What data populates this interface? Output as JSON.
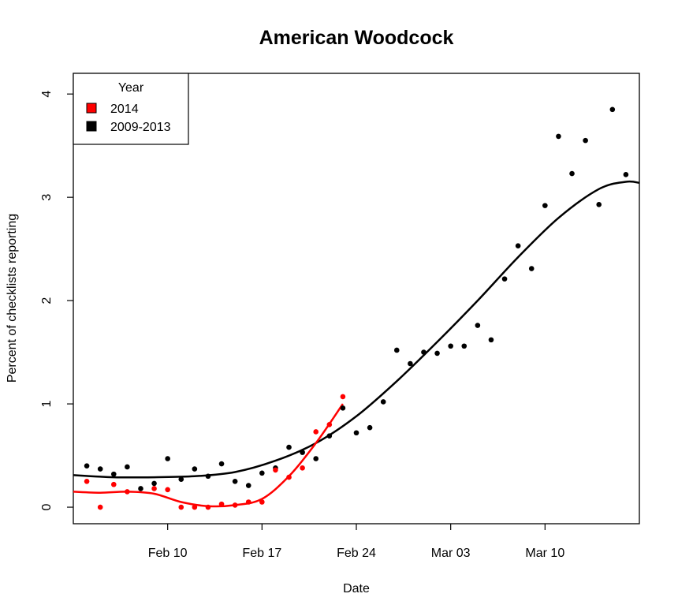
{
  "chart_data": {
    "type": "scatter",
    "title": "American Woodcock",
    "xlabel": "Date",
    "ylabel": "Percent of checklists reporting",
    "x_ticks": [
      "Feb 10",
      "Feb 17",
      "Feb 24",
      "Mar 03",
      "Mar 10"
    ],
    "y_ticks": [
      "0",
      "1",
      "2",
      "3",
      "4"
    ],
    "ylim": [
      -0.16,
      4.2
    ],
    "xlim": [
      "2014-02-03",
      "2014-03-17"
    ],
    "legend": {
      "title": "Year",
      "position": "top-left",
      "entries": [
        {
          "label": "2014",
          "color": "#ff0000"
        },
        {
          "label": "2009-2013",
          "color": "#000000"
        }
      ]
    },
    "series": [
      {
        "name": "2014",
        "color": "#ff0000",
        "points": [
          [
            "2014-02-04",
            0.25
          ],
          [
            "2014-02-05",
            0.0
          ],
          [
            "2014-02-06",
            0.22
          ],
          [
            "2014-02-07",
            0.15
          ],
          [
            "2014-02-09",
            0.18
          ],
          [
            "2014-02-10",
            0.17
          ],
          [
            "2014-02-11",
            0.0
          ],
          [
            "2014-02-12",
            0.0
          ],
          [
            "2014-02-13",
            0.0
          ],
          [
            "2014-02-14",
            0.03
          ],
          [
            "2014-02-15",
            0.02
          ],
          [
            "2014-02-16",
            0.05
          ],
          [
            "2014-02-17",
            0.05
          ],
          [
            "2014-02-18",
            0.36
          ],
          [
            "2014-02-19",
            0.29
          ],
          [
            "2014-02-20",
            0.38
          ],
          [
            "2014-02-21",
            0.73
          ],
          [
            "2014-02-22",
            0.8
          ],
          [
            "2014-02-23",
            1.07
          ]
        ],
        "smooth": [
          [
            "2014-02-03",
            0.15
          ],
          [
            "2014-02-05",
            0.14
          ],
          [
            "2014-02-07",
            0.15
          ],
          [
            "2014-02-09",
            0.13
          ],
          [
            "2014-02-11",
            0.05
          ],
          [
            "2014-02-13",
            0.01
          ],
          [
            "2014-02-15",
            0.02
          ],
          [
            "2014-02-17",
            0.08
          ],
          [
            "2014-02-19",
            0.3
          ],
          [
            "2014-02-21",
            0.62
          ],
          [
            "2014-02-23",
            1.0
          ]
        ]
      },
      {
        "name": "2009-2013",
        "color": "#000000",
        "points": [
          [
            "2014-02-04",
            0.4
          ],
          [
            "2014-02-05",
            0.37
          ],
          [
            "2014-02-06",
            0.32
          ],
          [
            "2014-02-07",
            0.39
          ],
          [
            "2014-02-08",
            0.18
          ],
          [
            "2014-02-09",
            0.23
          ],
          [
            "2014-02-10",
            0.47
          ],
          [
            "2014-02-11",
            0.27
          ],
          [
            "2014-02-12",
            0.37
          ],
          [
            "2014-02-13",
            0.3
          ],
          [
            "2014-02-14",
            0.42
          ],
          [
            "2014-02-15",
            0.25
          ],
          [
            "2014-02-16",
            0.21
          ],
          [
            "2014-02-17",
            0.33
          ],
          [
            "2014-02-18",
            0.38
          ],
          [
            "2014-02-19",
            0.58
          ],
          [
            "2014-02-20",
            0.53
          ],
          [
            "2014-02-21",
            0.47
          ],
          [
            "2014-02-22",
            0.69
          ],
          [
            "2014-02-23",
            0.96
          ],
          [
            "2014-02-24",
            0.72
          ],
          [
            "2014-02-25",
            0.77
          ],
          [
            "2014-02-26",
            1.02
          ],
          [
            "2014-02-27",
            1.52
          ],
          [
            "2014-02-28",
            1.39
          ],
          [
            "2014-03-01",
            1.5
          ],
          [
            "2014-03-02",
            1.49
          ],
          [
            "2014-03-03",
            1.56
          ],
          [
            "2014-03-04",
            1.56
          ],
          [
            "2014-03-05",
            1.76
          ],
          [
            "2014-03-06",
            1.62
          ],
          [
            "2014-03-07",
            2.21
          ],
          [
            "2014-03-08",
            2.53
          ],
          [
            "2014-03-09",
            2.31
          ],
          [
            "2014-03-10",
            2.92
          ],
          [
            "2014-03-11",
            3.59
          ],
          [
            "2014-03-12",
            3.23
          ],
          [
            "2014-03-13",
            3.55
          ],
          [
            "2014-03-14",
            2.93
          ],
          [
            "2014-03-15",
            3.85
          ],
          [
            "2014-03-16",
            3.22
          ]
        ],
        "smooth": [
          [
            "2014-02-03",
            0.31
          ],
          [
            "2014-02-06",
            0.29
          ],
          [
            "2014-02-09",
            0.29
          ],
          [
            "2014-02-12",
            0.3
          ],
          [
            "2014-02-15",
            0.34
          ],
          [
            "2014-02-18",
            0.45
          ],
          [
            "2014-02-21",
            0.62
          ],
          [
            "2014-02-24",
            0.88
          ],
          [
            "2014-02-27",
            1.22
          ],
          [
            "2014-03-02",
            1.6
          ],
          [
            "2014-03-05",
            2.0
          ],
          [
            "2014-03-08",
            2.42
          ],
          [
            "2014-03-11",
            2.8
          ],
          [
            "2014-03-14",
            3.08
          ],
          [
            "2014-03-16",
            3.15
          ],
          [
            "2014-03-17",
            3.14
          ]
        ]
      }
    ]
  }
}
